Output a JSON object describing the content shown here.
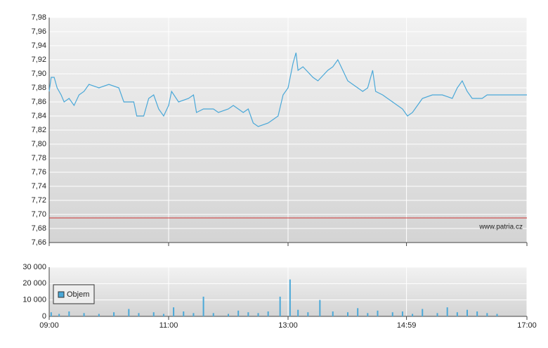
{
  "chart_data": [
    {
      "type": "line",
      "x": [
        "09:00",
        "09:02",
        "09:05",
        "09:08",
        "09:12",
        "09:15",
        "09:20",
        "09:25",
        "09:30",
        "09:35",
        "09:40",
        "09:50",
        "10:00",
        "10:10",
        "10:15",
        "10:25",
        "10:28",
        "10:35",
        "10:40",
        "10:45",
        "10:50",
        "10:55",
        "11:00",
        "11:03",
        "11:10",
        "11:20",
        "11:25",
        "11:28",
        "11:35",
        "11:45",
        "11:50",
        "12:00",
        "12:05",
        "12:15",
        "12:20",
        "12:25",
        "12:30",
        "12:40",
        "12:45",
        "12:50",
        "12:55",
        "13:00",
        "13:05",
        "13:08",
        "13:10",
        "13:15",
        "13:25",
        "13:30",
        "13:40",
        "13:45",
        "13:50",
        "13:55",
        "14:00",
        "14:05",
        "14:10",
        "14:15",
        "14:20",
        "14:25",
        "14:28",
        "14:35",
        "14:45",
        "14:55",
        "15:00",
        "15:05",
        "15:10",
        "15:15",
        "15:25",
        "15:35",
        "15:45",
        "15:50",
        "15:55",
        "16:00",
        "16:05",
        "16:15",
        "16:20",
        "17:00"
      ],
      "series": [
        {
          "color": "#4aa8d8",
          "values": [
            7.875,
            7.895,
            7.895,
            7.88,
            7.87,
            7.86,
            7.865,
            7.855,
            7.87,
            7.875,
            7.885,
            7.88,
            7.885,
            7.88,
            7.86,
            7.86,
            7.84,
            7.84,
            7.865,
            7.87,
            7.85,
            7.84,
            7.855,
            7.875,
            7.86,
            7.865,
            7.87,
            7.845,
            7.85,
            7.85,
            7.845,
            7.85,
            7.855,
            7.845,
            7.85,
            7.83,
            7.825,
            7.83,
            7.835,
            7.84,
            7.87,
            7.88,
            7.915,
            7.93,
            7.905,
            7.91,
            7.895,
            7.89,
            7.905,
            7.91,
            7.92,
            7.905,
            7.89,
            7.885,
            7.88,
            7.875,
            7.88,
            7.905,
            7.875,
            7.87,
            7.86,
            7.85,
            7.84,
            7.845,
            7.855,
            7.865,
            7.87,
            7.87,
            7.865,
            7.88,
            7.89,
            7.875,
            7.865,
            7.865,
            7.87,
            7.87
          ]
        }
      ],
      "xlim": [
        "09:00",
        "17:00"
      ],
      "xticks": [
        "09:00",
        "11:00",
        "13:00",
        "14:59",
        "17:00"
      ],
      "ylim": [
        7.66,
        7.98
      ],
      "yticks": [
        {
          "value": 7.66,
          "label": "7,66"
        },
        {
          "value": 7.68,
          "label": "7,68"
        },
        {
          "value": 7.7,
          "label": "7,70"
        },
        {
          "value": 7.72,
          "label": "7,72"
        },
        {
          "value": 7.74,
          "label": "7,74"
        },
        {
          "value": 7.76,
          "label": "7,76"
        },
        {
          "value": 7.78,
          "label": "7,78"
        },
        {
          "value": 7.8,
          "label": "7,80"
        },
        {
          "value": 7.82,
          "label": "7,82"
        },
        {
          "value": 7.84,
          "label": "7,84"
        },
        {
          "value": 7.86,
          "label": "7,86"
        },
        {
          "value": 7.88,
          "label": "7,88"
        },
        {
          "value": 7.9,
          "label": "7,90"
        },
        {
          "value": 7.92,
          "label": "7,92"
        },
        {
          "value": 7.94,
          "label": "7,94"
        },
        {
          "value": 7.96,
          "label": "7,96"
        },
        {
          "value": 7.98,
          "label": "7,98"
        }
      ],
      "reference_line": {
        "value": 7.695,
        "color": "#cc3333"
      },
      "annotation": "www.patria.cz",
      "grid": true
    },
    {
      "type": "bar",
      "x": [
        "09:02",
        "09:10",
        "09:20",
        "09:35",
        "09:50",
        "10:05",
        "10:20",
        "10:30",
        "10:45",
        "10:55",
        "11:05",
        "11:15",
        "11:25",
        "11:35",
        "11:45",
        "12:00",
        "12:10",
        "12:20",
        "12:30",
        "12:40",
        "12:52",
        "13:02",
        "13:10",
        "13:20",
        "13:32",
        "13:45",
        "14:00",
        "14:10",
        "14:20",
        "14:30",
        "14:45",
        "14:55",
        "15:05",
        "15:15",
        "15:30",
        "15:40",
        "15:50",
        "16:00",
        "16:10",
        "16:20",
        "16:30"
      ],
      "series": [
        {
          "name": "Objem",
          "color": "#4aa8d8",
          "values": [
            2500,
            1500,
            3000,
            2000,
            1500,
            2500,
            4500,
            2000,
            2500,
            1500,
            5500,
            3000,
            2000,
            12000,
            2000,
            1500,
            3500,
            2500,
            2000,
            3000,
            12000,
            22500,
            4000,
            2500,
            10000,
            3000,
            2500,
            5000,
            2000,
            3500,
            2500,
            3000,
            1500,
            4500,
            2000,
            5500,
            2500,
            4000,
            3000,
            2000,
            1500
          ]
        }
      ],
      "xlim": [
        "09:00",
        "17:00"
      ],
      "xticks": [
        "09:00",
        "11:00",
        "13:00",
        "14:59",
        "17:00"
      ],
      "ylim": [
        0,
        30000
      ],
      "yticks": [
        0,
        {
          "value": 10000,
          "label": "10 000"
        },
        {
          "value": 20000,
          "label": "20 000"
        },
        {
          "value": 30000,
          "label": "30 000"
        }
      ],
      "grid": true
    }
  ]
}
